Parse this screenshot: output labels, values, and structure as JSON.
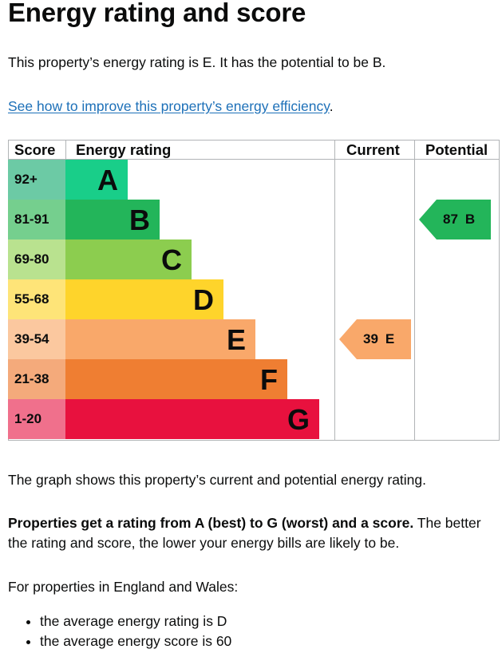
{
  "title": "Energy rating and score",
  "intro": "This property’s energy rating is E. It has the potential to be B.",
  "improve_link": "See how to improve this property’s energy efficiency",
  "improve_link_trail": ".",
  "chart_headers": {
    "score": "Score",
    "rating": "Energy rating",
    "current": "Current",
    "potential": "Potential"
  },
  "bands": [
    {
      "score": "92+",
      "letter": "A",
      "color": "#19ce89",
      "score_bg": "#6ccaa5"
    },
    {
      "score": "81-91",
      "letter": "B",
      "color": "#23b55a",
      "score_bg": "#75cf8e"
    },
    {
      "score": "69-80",
      "letter": "C",
      "color": "#8ccd4f",
      "score_bg": "#b9e28f"
    },
    {
      "score": "55-68",
      "letter": "D",
      "color": "#fed42b",
      "score_bg": "#fee478"
    },
    {
      "score": "39-54",
      "letter": "E",
      "color": "#f9a86a",
      "score_bg": "#fbc89f"
    },
    {
      "score": "21-38",
      "letter": "F",
      "color": "#ef7e32",
      "score_bg": "#f4aa7b"
    },
    {
      "score": "1-20",
      "letter": "G",
      "color": "#e8113e",
      "score_bg": "#f0708c"
    }
  ],
  "current": {
    "value": "39",
    "letter": "E",
    "color": "#f9a86a"
  },
  "potential": {
    "value": "87",
    "letter": "B",
    "color": "#23b55a"
  },
  "graph_caption": "The graph shows this property’s current and potential energy rating.",
  "rating_bold": "Properties get a rating from A (best) to G (worst) and a score.",
  "rating_rest": " The better the rating and score, the lower your energy bills are likely to be.",
  "region_intro": "For properties in England and Wales:",
  "facts": [
    "the average energy rating is D",
    "the average energy score is 60"
  ]
}
